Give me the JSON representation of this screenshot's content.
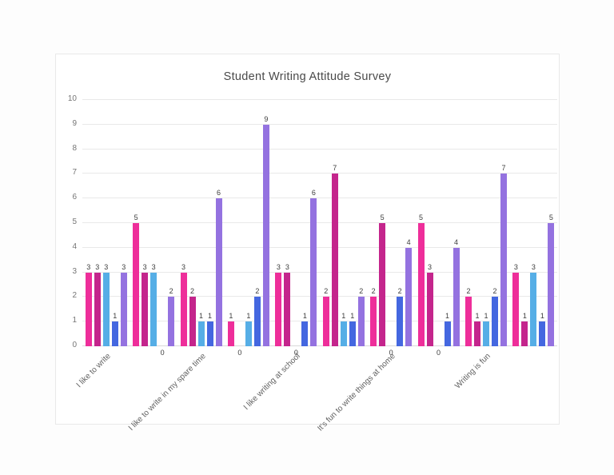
{
  "card": {
    "background": "#ffffff",
    "border_color": "#e9e9e9"
  },
  "chart_data": {
    "type": "bar",
    "title": "Student Writing Attitude Survey",
    "title_color": "#4a4a4a",
    "xlabel": "",
    "ylabel": "",
    "ylim": [
      0,
      10
    ],
    "yticks": [
      0,
      1,
      2,
      3,
      4,
      5,
      6,
      7,
      8,
      9,
      10
    ],
    "grid": true,
    "legend": "none",
    "value_labels": true,
    "categories": [
      "I like to write",
      "",
      "I like to write in my spare time",
      "",
      "I like writing at school",
      "",
      "It's fun to write things at home",
      "",
      "Writing is fun",
      ""
    ],
    "series": [
      {
        "name": "series-1",
        "color": "#ee2e9a",
        "values": [
          3,
          5,
          3,
          1,
          3,
          2,
          2,
          5,
          2,
          3
        ]
      },
      {
        "name": "series-2",
        "color": "#c4258c",
        "values": [
          3,
          3,
          2,
          0,
          3,
          7,
          5,
          3,
          1,
          1
        ]
      },
      {
        "name": "series-3",
        "color": "#56aee6",
        "values": [
          3,
          3,
          1,
          1,
          0,
          1,
          0,
          0,
          1,
          3
        ]
      },
      {
        "name": "series-4",
        "color": "#4467e0",
        "values": [
          1,
          0,
          1,
          2,
          1,
          1,
          2,
          1,
          2,
          1
        ]
      },
      {
        "name": "series-5",
        "color": "#9472e0",
        "values": [
          3,
          2,
          6,
          9,
          6,
          2,
          4,
          4,
          7,
          5
        ]
      }
    ]
  }
}
